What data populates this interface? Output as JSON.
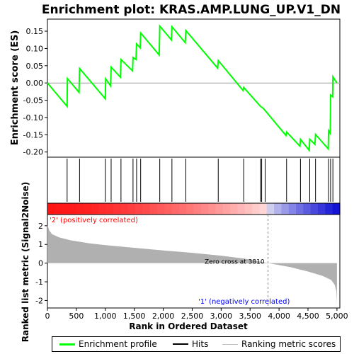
{
  "chart_data": {
    "type": "line",
    "title": "Enrichment plot: KRAS.AMP.LUNG_UP.V1_DN",
    "top_panel": {
      "ylabel": "Enrichment score (ES)",
      "ylim": [
        -0.215,
        0.185
      ],
      "yticks": [
        "0.15",
        "0.10",
        "0.05",
        "0.00",
        "-0.05",
        "-0.10",
        "-0.15",
        "-0.20"
      ],
      "ytick_values": [
        0.15,
        0.1,
        0.05,
        0.0,
        -0.05,
        -0.1,
        -0.15,
        -0.2
      ],
      "line_color": "#00ff00",
      "es_profile": [
        [
          0,
          0.0
        ],
        [
          340,
          -0.068
        ],
        [
          345,
          0.013
        ],
        [
          545,
          -0.027
        ],
        [
          555,
          0.042
        ],
        [
          1000,
          -0.046
        ],
        [
          1005,
          0.012
        ],
        [
          1090,
          -0.008
        ],
        [
          1100,
          0.046
        ],
        [
          1260,
          0.017
        ],
        [
          1270,
          0.068
        ],
        [
          1470,
          0.035
        ],
        [
          1478,
          0.074
        ],
        [
          1530,
          0.068
        ],
        [
          1540,
          0.113
        ],
        [
          1600,
          0.102
        ],
        [
          1610,
          0.145
        ],
        [
          1930,
          0.081
        ],
        [
          1940,
          0.165
        ],
        [
          2140,
          0.125
        ],
        [
          2150,
          0.163
        ],
        [
          2380,
          0.117
        ],
        [
          2390,
          0.152
        ],
        [
          2940,
          0.043
        ],
        [
          2950,
          0.065
        ],
        [
          3380,
          -0.022
        ],
        [
          3390,
          -0.013
        ],
        [
          3680,
          -0.068
        ],
        [
          3700,
          -0.07
        ],
        [
          3740,
          -0.076
        ],
        [
          4120,
          -0.152
        ],
        [
          4130,
          -0.142
        ],
        [
          4360,
          -0.183
        ],
        [
          4370,
          -0.163
        ],
        [
          4520,
          -0.195
        ],
        [
          4530,
          -0.163
        ],
        [
          4620,
          -0.178
        ],
        [
          4630,
          -0.149
        ],
        [
          4850,
          -0.191
        ],
        [
          4855,
          -0.138
        ],
        [
          4885,
          -0.146
        ],
        [
          4890,
          -0.035
        ],
        [
          4925,
          -0.04
        ],
        [
          4930,
          0.018
        ],
        [
          5000,
          0.0
        ]
      ]
    },
    "hits": [
      340,
      555,
      1000,
      1100,
      1270,
      1478,
      1540,
      1610,
      1940,
      2150,
      2390,
      2950,
      3390,
      3680,
      3700,
      3760,
      4130,
      4370,
      4530,
      4630,
      4855,
      4890,
      4930
    ],
    "x_axis": {
      "xlabel": "Rank in Ordered Dataset",
      "xlim": [
        0,
        5050
      ],
      "xticks": [
        "0",
        "500",
        "1,000",
        "1,500",
        "2,000",
        "2,500",
        "3,000",
        "3,500",
        "4,000",
        "4,500",
        "5,000"
      ],
      "xtick_values": [
        0,
        500,
        1000,
        1500,
        2000,
        2500,
        3000,
        3500,
        4000,
        4500,
        5000
      ]
    },
    "bottom_panel": {
      "ylabel": "Ranked list metric (Signal2Noise)",
      "ylim": [
        -2.4,
        2.6
      ],
      "yticks": [
        "2",
        "1",
        "0",
        "-1",
        "-2"
      ],
      "ytick_values": [
        2,
        1,
        0,
        -1,
        -2
      ],
      "metric_profile": [
        [
          0,
          2.05
        ],
        [
          30,
          1.75
        ],
        [
          80,
          1.55
        ],
        [
          200,
          1.38
        ],
        [
          400,
          1.22
        ],
        [
          700,
          1.07
        ],
        [
          1000,
          0.96
        ],
        [
          1500,
          0.82
        ],
        [
          2000,
          0.68
        ],
        [
          2500,
          0.55
        ],
        [
          3000,
          0.4
        ],
        [
          3400,
          0.24
        ],
        [
          3810,
          0.0
        ],
        [
          4200,
          -0.22
        ],
        [
          4500,
          -0.45
        ],
        [
          4750,
          -0.68
        ],
        [
          4900,
          -0.9
        ],
        [
          4960,
          -1.15
        ],
        [
          4990,
          -1.5
        ],
        [
          5000,
          -2.15
        ]
      ],
      "fill_color": "#b0b0b0",
      "zero_cross_label": "Zero cross at 3810",
      "zero_cross": 3810,
      "positive_label": "'2' (positively correlated)",
      "negative_label": "'1' (negatively correlated)",
      "positive_color": "#ff0000",
      "negative_color": "#0000ff"
    },
    "legend": {
      "placement": "bottom",
      "items": [
        {
          "label": "Enrichment profile",
          "color": "#00ff00"
        },
        {
          "label": "Hits",
          "color": "#000000"
        },
        {
          "label": "Ranking metric scores",
          "color": "#c0c0c0"
        }
      ]
    }
  }
}
